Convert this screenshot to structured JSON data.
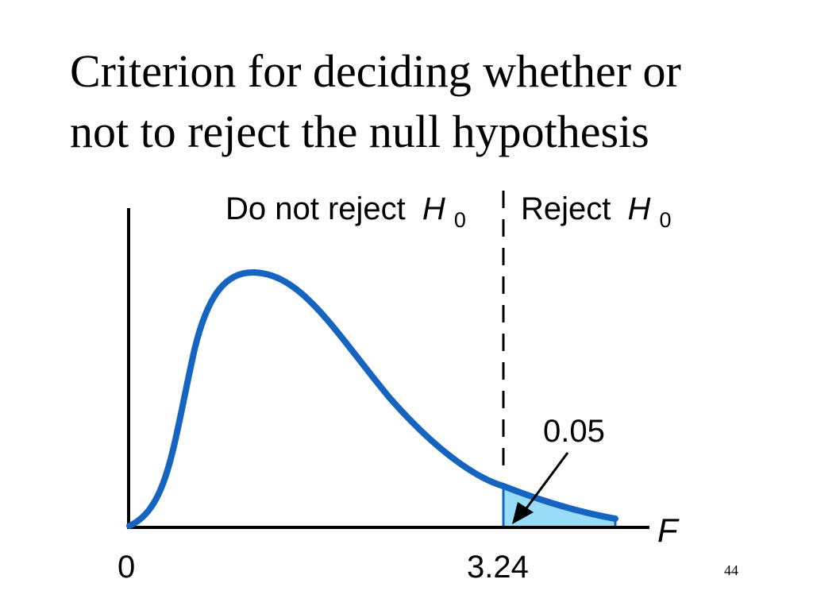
{
  "slide": {
    "title_line1": "Criterion for deciding whether or",
    "title_line2": "not to reject the null hypothesis",
    "page_number": "44"
  },
  "figure": {
    "region_left_label": "Do not reject",
    "region_right_label": "Reject",
    "hypothesis_symbol": "H",
    "hypothesis_subscript": "0",
    "x_axis_label": "F",
    "x_origin_label": "0",
    "critical_value_label": "3.24",
    "critical_value": 3.24,
    "tail_area_label": "0.05",
    "tail_area": 0.05,
    "colors": {
      "curve": "#1565c0",
      "tail_fill": "#99dcf7",
      "axis": "#000000",
      "divider": "#000000"
    }
  }
}
